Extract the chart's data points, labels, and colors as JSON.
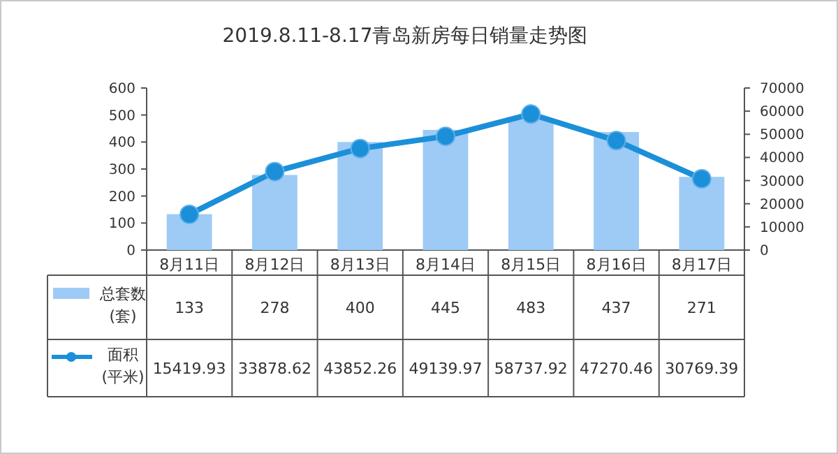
{
  "chart_data": {
    "type": "bar",
    "title": "2019.8.11-8.17青岛新房每日销量走势图",
    "categories": [
      "8月11日",
      "8月12日",
      "8月13日",
      "8月14日",
      "8月15日",
      "8月16日",
      "8月17日"
    ],
    "series": [
      {
        "name": "总套数 (套)",
        "color": "#9dcbf5",
        "values": [
          133,
          278,
          400,
          445,
          483,
          437,
          271
        ]
      },
      {
        "name": "面积 (平米)",
        "type": "line",
        "axis": "y2",
        "color": "#1c8fd9",
        "marker": "circle",
        "values": [
          15419.93,
          33878.62,
          43852.26,
          49139.97,
          58737.92,
          47270.46,
          30769.39
        ]
      }
    ],
    "ylim": [
      0,
      600
    ],
    "yticks": [
      0,
      100,
      200,
      300,
      400,
      500,
      600
    ],
    "y2lim": [
      0,
      70000
    ],
    "y2ticks": [
      0,
      10000,
      20000,
      30000,
      40000,
      50000,
      60000,
      70000
    ],
    "data_labels": true,
    "legend": "bottom",
    "grid": false
  }
}
